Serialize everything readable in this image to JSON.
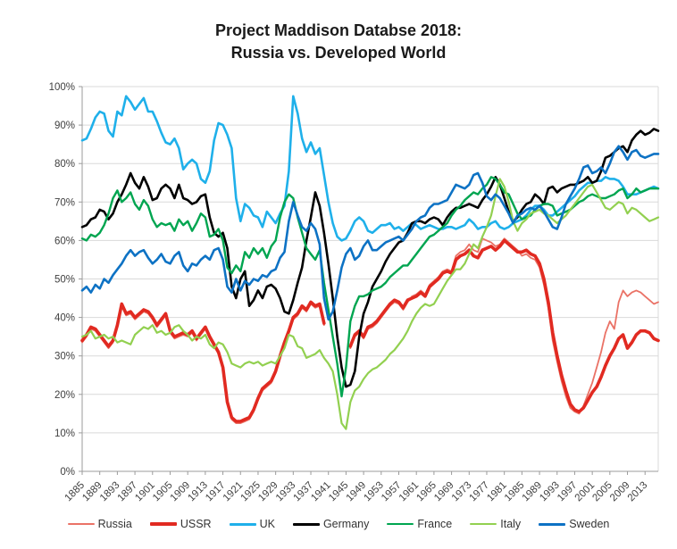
{
  "title": {
    "line1": "Project Maddison Databse 2018:",
    "line2": "Russia vs. Developed World"
  },
  "chart_data": {
    "type": "line",
    "title": "Project Maddison Databse 2018: Russia vs. Developed World",
    "xlabel": "",
    "ylabel": "",
    "ylim": [
      0,
      100
    ],
    "grid": "horizontal",
    "legend_position": "bottom",
    "x_start_year": 1885,
    "x_end_year": 2016,
    "x_tick_labels": [
      "1885",
      "1889",
      "1893",
      "1897",
      "1901",
      "1905",
      "1909",
      "1913",
      "1917",
      "1921",
      "1925",
      "1929",
      "1933",
      "1937",
      "1941",
      "1945",
      "1949",
      "1953",
      "1957",
      "1961",
      "1965",
      "1969",
      "1973",
      "1977",
      "1981",
      "1985",
      "1989",
      "1993",
      "1997",
      "2001",
      "2005",
      "2009",
      "2013"
    ],
    "y_tick_labels": [
      "0%",
      "10%",
      "20%",
      "30%",
      "40%",
      "50%",
      "60%",
      "70%",
      "80%",
      "90%",
      "100%"
    ],
    "note": "values are percent; USSR and Russia have a data gap 1941-1945",
    "series": [
      {
        "name": "Russia",
        "color": "#ea7266",
        "width": 1.8,
        "values": [
          33.5,
          35,
          37,
          36.5,
          35,
          33.5,
          32,
          33.5,
          37.5,
          43,
          40.5,
          41,
          39.5,
          40.5,
          41.5,
          41,
          39.5,
          37.5,
          39,
          40.5,
          36,
          34.5,
          35,
          35.5,
          35,
          36,
          34,
          35.5,
          37,
          34.5,
          32.5,
          30.5,
          26.5,
          17.5,
          13.5,
          12.5,
          12.5,
          13,
          13.5,
          15.5,
          18.5,
          21,
          22,
          23,
          25.5,
          29.5,
          33,
          36,
          39.5,
          40.5,
          42.5,
          41.5,
          43.5,
          42.5,
          43,
          38,
          null,
          null,
          null,
          null,
          null,
          32,
          35,
          36,
          34.5,
          37,
          37.5,
          38.5,
          40,
          41.5,
          43,
          44,
          43.5,
          42,
          44,
          45.5,
          46,
          47,
          46,
          48.5,
          49.5,
          50.5,
          52,
          52.5,
          52,
          56,
          57,
          57.5,
          59,
          57.5,
          57,
          60.5,
          60,
          59.5,
          58.5,
          59,
          60.5,
          59.5,
          58.5,
          57.5,
          56,
          56.5,
          55.5,
          55,
          53,
          48.5,
          42.5,
          34,
          28.5,
          23.5,
          19.5,
          16.5,
          15.5,
          15,
          17,
          20,
          23,
          27,
          31,
          36,
          39,
          37,
          44,
          47,
          45.5,
          46.5,
          47,
          46.5,
          45.5,
          44.5,
          43.5,
          44
        ]
      },
      {
        "name": "USSR",
        "color": "#e12a21",
        "width": 3.6,
        "values": [
          34,
          35.5,
          37.5,
          37,
          35.5,
          34,
          32.5,
          34,
          38,
          43.5,
          41,
          41.5,
          40,
          41,
          42,
          41.5,
          40,
          38,
          39.5,
          41,
          36.5,
          35,
          35.5,
          36,
          35.5,
          36.5,
          34.5,
          36,
          37.5,
          35,
          33,
          31,
          27,
          18,
          14,
          13,
          13,
          13.5,
          14,
          16,
          19,
          21.5,
          22.5,
          23.5,
          26,
          30,
          33.5,
          36.5,
          40,
          41,
          43,
          42,
          44,
          43,
          43.5,
          38.5,
          null,
          null,
          null,
          null,
          null,
          32.5,
          35.5,
          36.5,
          35,
          37.5,
          38,
          39,
          40.5,
          42,
          43.5,
          44.5,
          44,
          42.5,
          44.5,
          45,
          45.5,
          46.5,
          45.5,
          48,
          49,
          50,
          51.5,
          52,
          51.5,
          55,
          56,
          56.5,
          57.5,
          56,
          55.5,
          57.5,
          58,
          58.5,
          57.5,
          58.5,
          60,
          59,
          58,
          57,
          57,
          57.5,
          56.5,
          56,
          54,
          50,
          44,
          36,
          30,
          25,
          21,
          17.5,
          16,
          15.5,
          16.5,
          18.5,
          20.5,
          22,
          24.5,
          27.5,
          30,
          32,
          34.5,
          35.5,
          32,
          33.5,
          35.5,
          36.5,
          36.5,
          36,
          34.5,
          34
        ]
      },
      {
        "name": "UK",
        "color": "#1fb0ea",
        "width": 2.6,
        "values": [
          86,
          86.5,
          89,
          92,
          93.5,
          93,
          88.5,
          87,
          93.5,
          92.5,
          97.5,
          96,
          94,
          95.5,
          97,
          93.5,
          93.5,
          91,
          88,
          85.5,
          85,
          86.5,
          84,
          78.5,
          80,
          81,
          80,
          76,
          75,
          78,
          86,
          90.5,
          90,
          87.5,
          84,
          71,
          65,
          69.5,
          68.5,
          66.5,
          66,
          63.5,
          67.5,
          66,
          64.5,
          67,
          69,
          78,
          97.5,
          93,
          86.5,
          83,
          85.5,
          82.5,
          84,
          77,
          70,
          64.5,
          61,
          60,
          60.5,
          62.5,
          65,
          66,
          65,
          62.5,
          62,
          63,
          64,
          64,
          64.5,
          63,
          63.5,
          62.5,
          63.5,
          64.5,
          64,
          63,
          63.5,
          64,
          63.5,
          63,
          63,
          63.5,
          63.5,
          63,
          63.5,
          64,
          65.5,
          64.5,
          63,
          63.5,
          63.5,
          64.5,
          65,
          63.5,
          63,
          63.5,
          64.5,
          65,
          65.5,
          66.5,
          68,
          69,
          69,
          68,
          66.5,
          66.5,
          67.5,
          68.5,
          69.5,
          70.5,
          71.5,
          73,
          74,
          75,
          75,
          75.5,
          75.5,
          76.5,
          76,
          76,
          75.5,
          74,
          72,
          72,
          72,
          72.5,
          73,
          73.5,
          74,
          73.5
        ]
      },
      {
        "name": "Germany",
        "color": "#000000",
        "width": 2.6,
        "values": [
          63.5,
          64,
          65.5,
          66,
          68,
          67.5,
          65.5,
          67,
          70,
          72,
          74.5,
          77.5,
          75,
          73.5,
          76.5,
          74,
          70.5,
          71,
          73.5,
          74.5,
          73.5,
          71,
          74.5,
          71,
          70.5,
          69.5,
          70,
          71.5,
          72,
          66,
          62,
          61,
          62,
          58,
          48,
          45,
          50,
          52,
          43,
          44.5,
          47,
          45,
          48,
          48.5,
          47.5,
          45,
          41.5,
          41,
          44.5,
          49,
          53,
          60,
          66,
          72.5,
          69,
          62,
          54,
          45,
          35,
          27,
          22,
          22.5,
          26,
          35,
          41,
          44,
          48,
          50,
          52,
          54.5,
          56.5,
          58,
          59.5,
          60,
          62,
          64.5,
          65,
          65,
          64.5,
          65.5,
          66,
          65.5,
          64,
          66,
          67.5,
          68.5,
          68.5,
          69,
          69.5,
          69,
          68.5,
          70.5,
          72,
          74,
          76.5,
          74.5,
          71,
          67.5,
          65,
          66,
          68,
          69.5,
          70,
          72,
          71,
          69.5,
          73.5,
          74,
          72.5,
          73.5,
          74,
          74.5,
          74.5,
          75,
          75.5,
          76.5,
          75,
          75.5,
          78,
          81.5,
          82,
          83,
          84,
          84.5,
          83,
          86,
          87.5,
          88.5,
          87.5,
          88,
          89,
          88.5
        ]
      },
      {
        "name": "France",
        "color": "#00A550",
        "width": 2.4,
        "values": [
          60.5,
          60,
          61.5,
          61,
          62,
          64,
          67,
          71,
          73,
          70,
          71,
          72.5,
          69.5,
          68,
          70.5,
          69,
          65.5,
          63.5,
          64.5,
          64,
          64.5,
          62.5,
          65.5,
          64,
          65,
          62.5,
          64.5,
          67,
          66,
          61,
          61.5,
          63,
          60,
          53,
          51.5,
          53.5,
          52,
          57,
          55.5,
          58,
          56.5,
          58,
          55.5,
          58.5,
          60,
          66,
          70,
          72,
          71,
          66,
          62,
          58,
          56.5,
          55,
          57.5,
          49,
          42,
          35,
          28,
          19.5,
          27,
          39,
          43,
          45.5,
          45.5,
          46,
          47,
          47.5,
          48,
          49,
          50.5,
          51.5,
          52.5,
          53.5,
          53.5,
          55,
          56.5,
          58,
          59.5,
          61,
          61.5,
          62.5,
          63.5,
          64.5,
          66.5,
          68,
          69,
          70.5,
          71.5,
          72.5,
          72,
          73.5,
          74.5,
          76.5,
          76,
          74.5,
          72.5,
          72,
          69.5,
          67,
          65.5,
          66,
          66.5,
          68,
          69,
          69.5,
          69.5,
          69,
          66.5,
          67,
          67.5,
          68,
          69,
          70,
          70.5,
          71.5,
          72,
          71.5,
          71,
          71,
          71.5,
          72,
          73,
          73.5,
          71,
          72,
          73.5,
          72.5,
          73,
          73.5,
          73.5,
          73.5
        ]
      },
      {
        "name": "Italy",
        "color": "#92D050",
        "width": 2.2,
        "values": [
          35,
          35.5,
          36.5,
          34.5,
          35,
          35.5,
          34.5,
          35,
          33.5,
          34,
          33.5,
          33,
          35.5,
          36.5,
          37.5,
          37,
          38,
          36,
          36.5,
          35.5,
          36,
          37.5,
          38,
          36.5,
          35.5,
          34,
          35,
          34.5,
          35.5,
          33,
          32,
          33.5,
          33,
          31,
          28,
          27.5,
          27,
          28,
          28.5,
          28,
          28.5,
          27.5,
          28,
          28.5,
          28,
          30,
          32,
          35.5,
          35,
          32.5,
          32,
          29.5,
          30,
          30.5,
          31.5,
          29.5,
          28,
          26,
          20,
          12.5,
          11,
          18,
          21,
          22,
          24,
          25.5,
          26.5,
          27,
          28,
          29,
          30.5,
          31.5,
          33,
          34.5,
          36.5,
          39,
          41,
          42.5,
          43.5,
          43,
          43.5,
          45.5,
          47.5,
          49.5,
          51,
          52.5,
          52.5,
          54,
          56.5,
          59,
          58,
          61,
          63.5,
          66.5,
          71.5,
          76,
          74,
          70,
          65,
          62.5,
          64.5,
          65.5,
          67,
          67.5,
          68,
          67,
          66.5,
          65.5,
          64.5,
          65.5,
          66.5,
          68,
          69.5,
          71,
          72.5,
          74,
          74.5,
          72.5,
          70.5,
          68.5,
          68,
          69,
          70,
          69.5,
          67,
          68.5,
          68,
          67,
          66,
          65,
          65.5,
          66
        ]
      },
      {
        "name": "Sweden",
        "color": "#0d72c4",
        "width": 2.6,
        "values": [
          47,
          48,
          46.5,
          48.5,
          47.5,
          50,
          49,
          51,
          52.5,
          54,
          56,
          57.5,
          56,
          57,
          57.5,
          55.5,
          54,
          55,
          56.5,
          54.5,
          54,
          56,
          57,
          53.5,
          52,
          54,
          53.5,
          55,
          56,
          55,
          57.5,
          58,
          55,
          48,
          46.5,
          50,
          47,
          49.5,
          48.5,
          50,
          49.5,
          51,
          50.5,
          52,
          52.5,
          55.5,
          57,
          65,
          70,
          66.5,
          63.5,
          62.5,
          64.5,
          63,
          59,
          45,
          39.5,
          41.5,
          47,
          53,
          56.5,
          58,
          55,
          56,
          58.5,
          60,
          57.5,
          57.5,
          58.5,
          59.5,
          60,
          60.5,
          61,
          60,
          61.5,
          63,
          65,
          66,
          66.5,
          68.5,
          69.5,
          69.5,
          70,
          70.5,
          72.5,
          74.5,
          74,
          73.5,
          74.5,
          77,
          77.5,
          75,
          71.5,
          70.5,
          72,
          71,
          69,
          67,
          64.5,
          66.5,
          67,
          68,
          68.5,
          68,
          69,
          67.5,
          65.5,
          63.5,
          63,
          66,
          69.5,
          71.5,
          73.5,
          76,
          79,
          79.5,
          77.5,
          78,
          79,
          77.5,
          80,
          83,
          84.5,
          83,
          81,
          83,
          83.5,
          82,
          81.5,
          82,
          82.5,
          82.5
        ]
      }
    ],
    "colors": {
      "grid": "#d9d9d9",
      "axis": "#9b9b9b",
      "tick_text": "#404040"
    }
  }
}
